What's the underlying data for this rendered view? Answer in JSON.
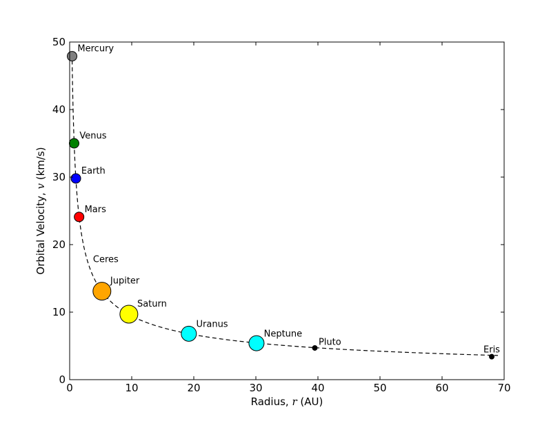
{
  "chart_data": {
    "type": "scatter",
    "title": "",
    "xlabel": "Radius, r (AU)",
    "xlabel_parts": {
      "prefix": "Radius, ",
      "var": "r",
      "suffix": " (AU)"
    },
    "ylabel": "Orbital Velocity, v (km/s)",
    "ylabel_parts": {
      "prefix": "Orbital Velocity, ",
      "var": "v",
      "suffix": " (km/s)"
    },
    "xlim": [
      0,
      70
    ],
    "ylim": [
      0,
      50
    ],
    "x_ticks": [
      0,
      10,
      20,
      30,
      40,
      50,
      60,
      70
    ],
    "y_ticks": [
      0,
      10,
      20,
      30,
      40,
      50
    ],
    "grid": false,
    "legend": "none",
    "curve": {
      "style": "dashed",
      "color": "#000000",
      "formula": "v = 29.78 / sqrt(r)",
      "x_range": [
        0.38,
        69
      ]
    },
    "points": [
      {
        "name": "Mercury",
        "x": 0.39,
        "y": 47.9,
        "color": "#808080",
        "marker": "small"
      },
      {
        "name": "Venus",
        "x": 0.72,
        "y": 35.0,
        "color": "#008000",
        "marker": "small"
      },
      {
        "name": "Earth",
        "x": 1.0,
        "y": 29.8,
        "color": "#0000ff",
        "marker": "small"
      },
      {
        "name": "Mars",
        "x": 1.52,
        "y": 24.1,
        "color": "#ff0000",
        "marker": "small"
      },
      {
        "name": "Ceres",
        "x": 2.77,
        "y": 17.9,
        "color": "#000000",
        "marker": "none"
      },
      {
        "name": "Jupiter",
        "x": 5.2,
        "y": 13.1,
        "color": "#ffa500",
        "marker": "large"
      },
      {
        "name": "Saturn",
        "x": 9.54,
        "y": 9.7,
        "color": "#ffff00",
        "marker": "large"
      },
      {
        "name": "Uranus",
        "x": 19.2,
        "y": 6.8,
        "color": "#00ffff",
        "marker": "medium"
      },
      {
        "name": "Neptune",
        "x": 30.1,
        "y": 5.4,
        "color": "#00ffff",
        "marker": "medium"
      },
      {
        "name": "Pluto",
        "x": 39.5,
        "y": 4.7,
        "color": "#000000",
        "marker": "dot"
      },
      {
        "name": "Eris",
        "x": 68.0,
        "y": 3.4,
        "color": "#000000",
        "marker": "dot"
      }
    ]
  }
}
